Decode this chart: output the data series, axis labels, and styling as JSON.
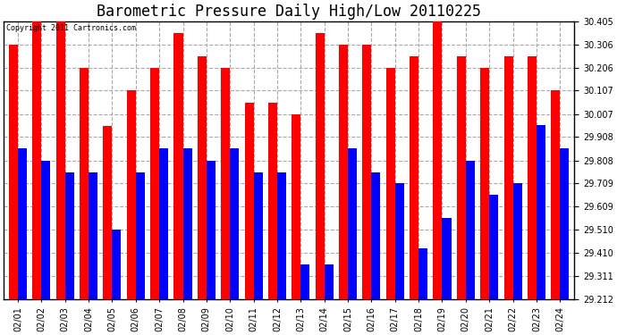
{
  "title": "Barometric Pressure Daily High/Low 20110225",
  "copyright": "Copyright 2011 Cartronics.com",
  "dates": [
    "02/01",
    "02/02",
    "02/03",
    "02/04",
    "02/05",
    "02/06",
    "02/07",
    "02/08",
    "02/09",
    "02/10",
    "02/11",
    "02/12",
    "02/13",
    "02/14",
    "02/15",
    "02/16",
    "02/17",
    "02/18",
    "02/19",
    "02/20",
    "02/21",
    "02/22",
    "02/23",
    "02/24"
  ],
  "highs": [
    30.306,
    30.405,
    30.405,
    30.206,
    29.957,
    30.107,
    30.206,
    30.355,
    30.256,
    30.206,
    30.057,
    30.057,
    30.007,
    30.355,
    30.306,
    30.306,
    30.206,
    30.256,
    30.405,
    30.256,
    30.206,
    30.256,
    30.256,
    30.107
  ],
  "lows": [
    29.858,
    29.808,
    29.758,
    29.758,
    29.51,
    29.758,
    29.858,
    29.858,
    29.808,
    29.858,
    29.758,
    29.758,
    29.36,
    29.36,
    29.858,
    29.758,
    29.71,
    29.43,
    29.56,
    29.808,
    29.66,
    29.71,
    29.96,
    29.858
  ],
  "high_color": "#ff0000",
  "low_color": "#0000ff",
  "bg_color": "#ffffff",
  "grid_color": "#aaaaaa",
  "ymin": 29.212,
  "ymax": 30.405,
  "yticks": [
    29.212,
    29.311,
    29.41,
    29.51,
    29.609,
    29.709,
    29.808,
    29.908,
    30.007,
    30.107,
    30.206,
    30.306,
    30.405
  ],
  "title_fontsize": 12,
  "tick_fontsize": 7,
  "bar_width": 0.38
}
